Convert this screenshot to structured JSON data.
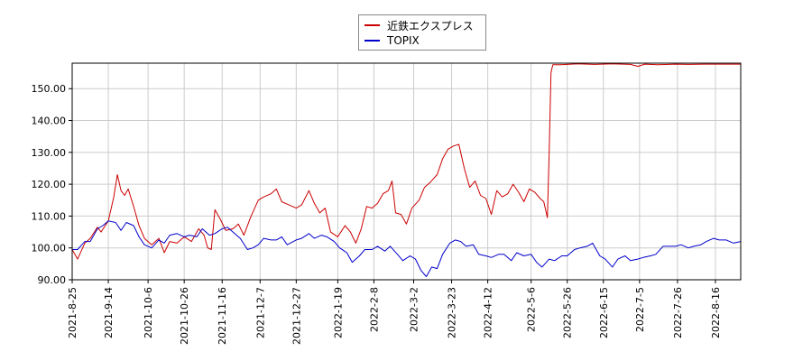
{
  "chart_data": {
    "type": "line",
    "title": "",
    "xlabel": "",
    "ylabel": "",
    "ylim": [
      90,
      158
    ],
    "yticks": [
      90,
      100,
      110,
      120,
      130,
      140,
      150
    ],
    "ytick_labels": [
      "90.00",
      "100.00",
      "110.00",
      "120.00",
      "130.00",
      "140.00",
      "150.00"
    ],
    "x_start": "2021-08-25",
    "x_end": "2022-08-30",
    "xticks": [
      "2021-8-25",
      "2021-9-14",
      "2021-10-6",
      "2021-10-26",
      "2021-11-16",
      "2021-12-7",
      "2021-12-27",
      "2022-1-19",
      "2022-2-8",
      "2022-3-2",
      "2022-3-23",
      "2022-4-12",
      "2022-5-6",
      "2022-5-26",
      "2022-6-15",
      "2022-7-5",
      "2022-7-26",
      "2022-8-16"
    ],
    "grid": true,
    "legend_position": "top-center",
    "series": [
      {
        "name": "近鉄エクスプレス",
        "color": "#cc0000",
        "points": [
          [
            "2021-08-25",
            99.5
          ],
          [
            "2021-08-28",
            96.5
          ],
          [
            "2021-09-01",
            101.5
          ],
          [
            "2021-09-04",
            103.0
          ],
          [
            "2021-09-08",
            106.5
          ],
          [
            "2021-09-10",
            105.0
          ],
          [
            "2021-09-14",
            108.5
          ],
          [
            "2021-09-17",
            116.0
          ],
          [
            "2021-09-19",
            123.0
          ],
          [
            "2021-09-21",
            118.0
          ],
          [
            "2021-09-23",
            116.5
          ],
          [
            "2021-09-25",
            118.5
          ],
          [
            "2021-09-28",
            113.0
          ],
          [
            "2021-10-01",
            107.0
          ],
          [
            "2021-10-04",
            103.0
          ],
          [
            "2021-10-08",
            101.0
          ],
          [
            "2021-10-12",
            103.0
          ],
          [
            "2021-10-15",
            98.5
          ],
          [
            "2021-10-18",
            102.0
          ],
          [
            "2021-10-22",
            101.5
          ],
          [
            "2021-10-26",
            103.5
          ],
          [
            "2021-10-30",
            102.0
          ],
          [
            "2021-11-03",
            106.0
          ],
          [
            "2021-11-06",
            104.0
          ],
          [
            "2021-11-08",
            100.0
          ],
          [
            "2021-11-10",
            99.5
          ],
          [
            "2021-11-12",
            112.0
          ],
          [
            "2021-11-15",
            109.0
          ],
          [
            "2021-11-18",
            105.5
          ],
          [
            "2021-11-22",
            106.0
          ],
          [
            "2021-11-25",
            107.5
          ],
          [
            "2021-11-28",
            104.0
          ],
          [
            "2021-12-02",
            110.0
          ],
          [
            "2021-12-06",
            115.0
          ],
          [
            "2021-12-09",
            116.0
          ],
          [
            "2021-12-13",
            117.0
          ],
          [
            "2021-12-16",
            118.5
          ],
          [
            "2021-12-19",
            114.5
          ],
          [
            "2021-12-23",
            113.5
          ],
          [
            "2021-12-27",
            112.5
          ],
          [
            "2021-12-30",
            113.5
          ],
          [
            "2022-01-03",
            118.0
          ],
          [
            "2022-01-06",
            114.0
          ],
          [
            "2022-01-09",
            111.0
          ],
          [
            "2022-01-12",
            112.5
          ],
          [
            "2022-01-15",
            105.0
          ],
          [
            "2022-01-19",
            103.5
          ],
          [
            "2022-01-23",
            107.0
          ],
          [
            "2022-01-26",
            105.0
          ],
          [
            "2022-01-29",
            101.5
          ],
          [
            "2022-02-01",
            106.0
          ],
          [
            "2022-02-04",
            113.0
          ],
          [
            "2022-02-07",
            112.5
          ],
          [
            "2022-02-10",
            114.0
          ],
          [
            "2022-02-13",
            117.0
          ],
          [
            "2022-02-16",
            118.0
          ],
          [
            "2022-02-18",
            121.0
          ],
          [
            "2022-02-20",
            111.0
          ],
          [
            "2022-02-23",
            110.5
          ],
          [
            "2022-02-26",
            107.5
          ],
          [
            "2022-03-01",
            112.5
          ],
          [
            "2022-03-05",
            115.0
          ],
          [
            "2022-03-08",
            119.0
          ],
          [
            "2022-03-11",
            120.5
          ],
          [
            "2022-03-15",
            123.0
          ],
          [
            "2022-03-18",
            128.0
          ],
          [
            "2022-03-21",
            131.0
          ],
          [
            "2022-03-24",
            132.0
          ],
          [
            "2022-03-27",
            132.5
          ],
          [
            "2022-03-30",
            125.0
          ],
          [
            "2022-04-02",
            119.0
          ],
          [
            "2022-04-05",
            121.0
          ],
          [
            "2022-04-08",
            116.5
          ],
          [
            "2022-04-11",
            115.5
          ],
          [
            "2022-04-14",
            110.5
          ],
          [
            "2022-04-17",
            118.0
          ],
          [
            "2022-04-20",
            116.0
          ],
          [
            "2022-04-23",
            117.0
          ],
          [
            "2022-04-26",
            120.0
          ],
          [
            "2022-04-29",
            117.5
          ],
          [
            "2022-05-02",
            114.5
          ],
          [
            "2022-05-05",
            118.5
          ],
          [
            "2022-05-08",
            117.5
          ],
          [
            "2022-05-11",
            115.5
          ],
          [
            "2022-05-13",
            114.5
          ],
          [
            "2022-05-15",
            109.5
          ],
          [
            "2022-05-16",
            130.0
          ],
          [
            "2022-05-17",
            155.0
          ],
          [
            "2022-05-18",
            157.5
          ],
          [
            "2022-05-22",
            157.5
          ],
          [
            "2022-06-01",
            157.8
          ],
          [
            "2022-06-10",
            157.6
          ],
          [
            "2022-06-20",
            157.8
          ],
          [
            "2022-06-30",
            157.6
          ],
          [
            "2022-07-04",
            157.0
          ],
          [
            "2022-07-08",
            157.7
          ],
          [
            "2022-07-15",
            157.5
          ],
          [
            "2022-07-25",
            157.7
          ],
          [
            "2022-08-01",
            157.6
          ],
          [
            "2022-08-10",
            157.7
          ],
          [
            "2022-08-20",
            157.7
          ],
          [
            "2022-08-30",
            157.7
          ]
        ]
      },
      {
        "name": "TOPIX",
        "color": "#0000cc",
        "points": [
          [
            "2021-08-25",
            99.5
          ],
          [
            "2021-08-28",
            99.5
          ],
          [
            "2021-09-01",
            102.0
          ],
          [
            "2021-09-04",
            102.0
          ],
          [
            "2021-09-08",
            106.0
          ],
          [
            "2021-09-11",
            107.0
          ],
          [
            "2021-09-14",
            108.5
          ],
          [
            "2021-09-18",
            108.0
          ],
          [
            "2021-09-21",
            105.5
          ],
          [
            "2021-09-24",
            108.0
          ],
          [
            "2021-09-28",
            107.0
          ],
          [
            "2021-10-01",
            103.5
          ],
          [
            "2021-10-04",
            101.0
          ],
          [
            "2021-10-08",
            100.0
          ],
          [
            "2021-10-12",
            102.5
          ],
          [
            "2021-10-15",
            101.5
          ],
          [
            "2021-10-18",
            104.0
          ],
          [
            "2021-10-22",
            104.5
          ],
          [
            "2021-10-26",
            103.5
          ],
          [
            "2021-10-29",
            104.0
          ],
          [
            "2021-11-02",
            103.5
          ],
          [
            "2021-11-05",
            106.0
          ],
          [
            "2021-11-09",
            104.0
          ],
          [
            "2021-11-12",
            104.5
          ],
          [
            "2021-11-16",
            106.0
          ],
          [
            "2021-11-19",
            106.5
          ],
          [
            "2021-11-22",
            105.0
          ],
          [
            "2021-11-26",
            103.0
          ],
          [
            "2021-11-30",
            99.5
          ],
          [
            "2021-12-03",
            100.0
          ],
          [
            "2021-12-06",
            101.0
          ],
          [
            "2021-12-09",
            103.0
          ],
          [
            "2021-12-13",
            102.5
          ],
          [
            "2021-12-16",
            102.5
          ],
          [
            "2021-12-19",
            103.5
          ],
          [
            "2021-12-22",
            101.0
          ],
          [
            "2021-12-27",
            102.5
          ],
          [
            "2021-12-30",
            103.0
          ],
          [
            "2022-01-03",
            104.5
          ],
          [
            "2022-01-06",
            103.0
          ],
          [
            "2022-01-10",
            104.0
          ],
          [
            "2022-01-13",
            103.5
          ],
          [
            "2022-01-17",
            102.0
          ],
          [
            "2022-01-20",
            100.0
          ],
          [
            "2022-01-24",
            98.5
          ],
          [
            "2022-01-27",
            95.5
          ],
          [
            "2022-01-31",
            97.5
          ],
          [
            "2022-02-03",
            99.5
          ],
          [
            "2022-02-07",
            99.5
          ],
          [
            "2022-02-10",
            100.5
          ],
          [
            "2022-02-14",
            99.0
          ],
          [
            "2022-02-17",
            100.5
          ],
          [
            "2022-02-21",
            98.0
          ],
          [
            "2022-02-24",
            96.0
          ],
          [
            "2022-02-28",
            97.5
          ],
          [
            "2022-03-03",
            96.5
          ],
          [
            "2022-03-06",
            93.0
          ],
          [
            "2022-03-09",
            91.0
          ],
          [
            "2022-03-12",
            94.0
          ],
          [
            "2022-03-15",
            93.5
          ],
          [
            "2022-03-18",
            98.0
          ],
          [
            "2022-03-22",
            101.5
          ],
          [
            "2022-03-25",
            102.5
          ],
          [
            "2022-03-28",
            102.0
          ],
          [
            "2022-03-31",
            100.5
          ],
          [
            "2022-04-04",
            101.0
          ],
          [
            "2022-04-07",
            98.0
          ],
          [
            "2022-04-11",
            97.5
          ],
          [
            "2022-04-14",
            97.0
          ],
          [
            "2022-04-18",
            98.0
          ],
          [
            "2022-04-21",
            98.0
          ],
          [
            "2022-04-25",
            96.0
          ],
          [
            "2022-04-28",
            98.5
          ],
          [
            "2022-05-02",
            97.5
          ],
          [
            "2022-05-06",
            98.0
          ],
          [
            "2022-05-09",
            95.5
          ],
          [
            "2022-05-12",
            94.0
          ],
          [
            "2022-05-16",
            96.5
          ],
          [
            "2022-05-19",
            96.0
          ],
          [
            "2022-05-23",
            97.5
          ],
          [
            "2022-05-26",
            97.5
          ],
          [
            "2022-05-30",
            99.5
          ],
          [
            "2022-06-02",
            100.0
          ],
          [
            "2022-06-06",
            100.5
          ],
          [
            "2022-06-09",
            101.5
          ],
          [
            "2022-06-13",
            97.5
          ],
          [
            "2022-06-16",
            96.5
          ],
          [
            "2022-06-20",
            94.0
          ],
          [
            "2022-06-23",
            96.5
          ],
          [
            "2022-06-27",
            97.5
          ],
          [
            "2022-06-30",
            96.0
          ],
          [
            "2022-07-04",
            96.5
          ],
          [
            "2022-07-07",
            97.0
          ],
          [
            "2022-07-11",
            97.5
          ],
          [
            "2022-07-14",
            98.0
          ],
          [
            "2022-07-18",
            100.5
          ],
          [
            "2022-07-21",
            100.5
          ],
          [
            "2022-07-25",
            100.5
          ],
          [
            "2022-07-28",
            101.0
          ],
          [
            "2022-08-01",
            100.0
          ],
          [
            "2022-08-04",
            100.5
          ],
          [
            "2022-08-08",
            101.0
          ],
          [
            "2022-08-11",
            102.0
          ],
          [
            "2022-08-15",
            103.0
          ],
          [
            "2022-08-18",
            102.5
          ],
          [
            "2022-08-22",
            102.5
          ],
          [
            "2022-08-26",
            101.5
          ],
          [
            "2022-08-30",
            102.0
          ]
        ]
      }
    ]
  }
}
